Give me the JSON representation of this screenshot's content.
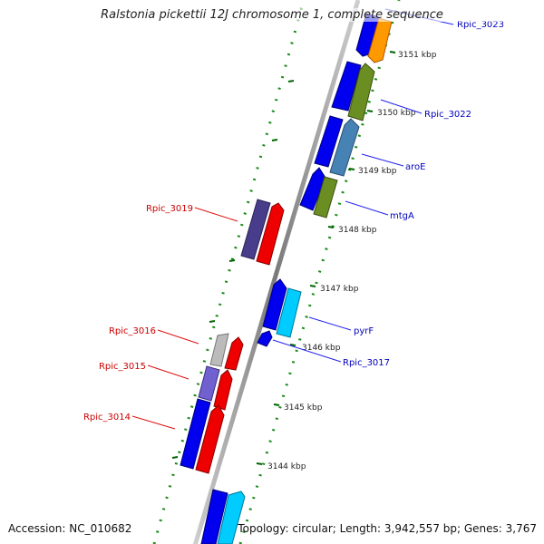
{
  "title": "Ralstonia pickettii 12J chromosome 1, complete sequence",
  "footer": {
    "accession": "Accession: NC_010682",
    "topology": "Topology: circular; Length: 3,942,557 bp; Genes: 3,767"
  },
  "kbp_labels": [
    "3151 kbp",
    "3150 kbp",
    "3149 kbp",
    "3148 kbp",
    "3147 kbp",
    "3146 kbp",
    "3145 kbp",
    "3144 kbp"
  ],
  "genes_forward": [
    {
      "name": "Rpic_3023",
      "color": "#0000cc"
    },
    {
      "name": "Rpic_3022",
      "color": "#0000cc"
    },
    {
      "name": "aroE",
      "color": "#0000cc"
    },
    {
      "name": "mtgA",
      "color": "#0000cc"
    },
    {
      "name": "pyrF",
      "color": "#0000cc"
    },
    {
      "name": "Rpic_3017",
      "color": "#0000cc"
    }
  ],
  "genes_reverse": [
    {
      "name": "Rpic_3019",
      "color": "#cc0000"
    },
    {
      "name": "Rpic_3016",
      "color": "#cc0000"
    },
    {
      "name": "Rpic_3015",
      "color": "#cc0000"
    },
    {
      "name": "Rpic_3014",
      "color": "#cc0000"
    }
  ],
  "colors": {
    "cds": "#0000ee",
    "orange": "#ff9900",
    "olive": "#6b8e23",
    "steelblue": "#4682b4",
    "cyan": "#00ccff",
    "red": "#ee0000",
    "slate": "#483d8b",
    "lightgray": "#bbbbbb",
    "mediumslate": "#7060d0",
    "backbone": "#888888",
    "tick": "#006400"
  }
}
